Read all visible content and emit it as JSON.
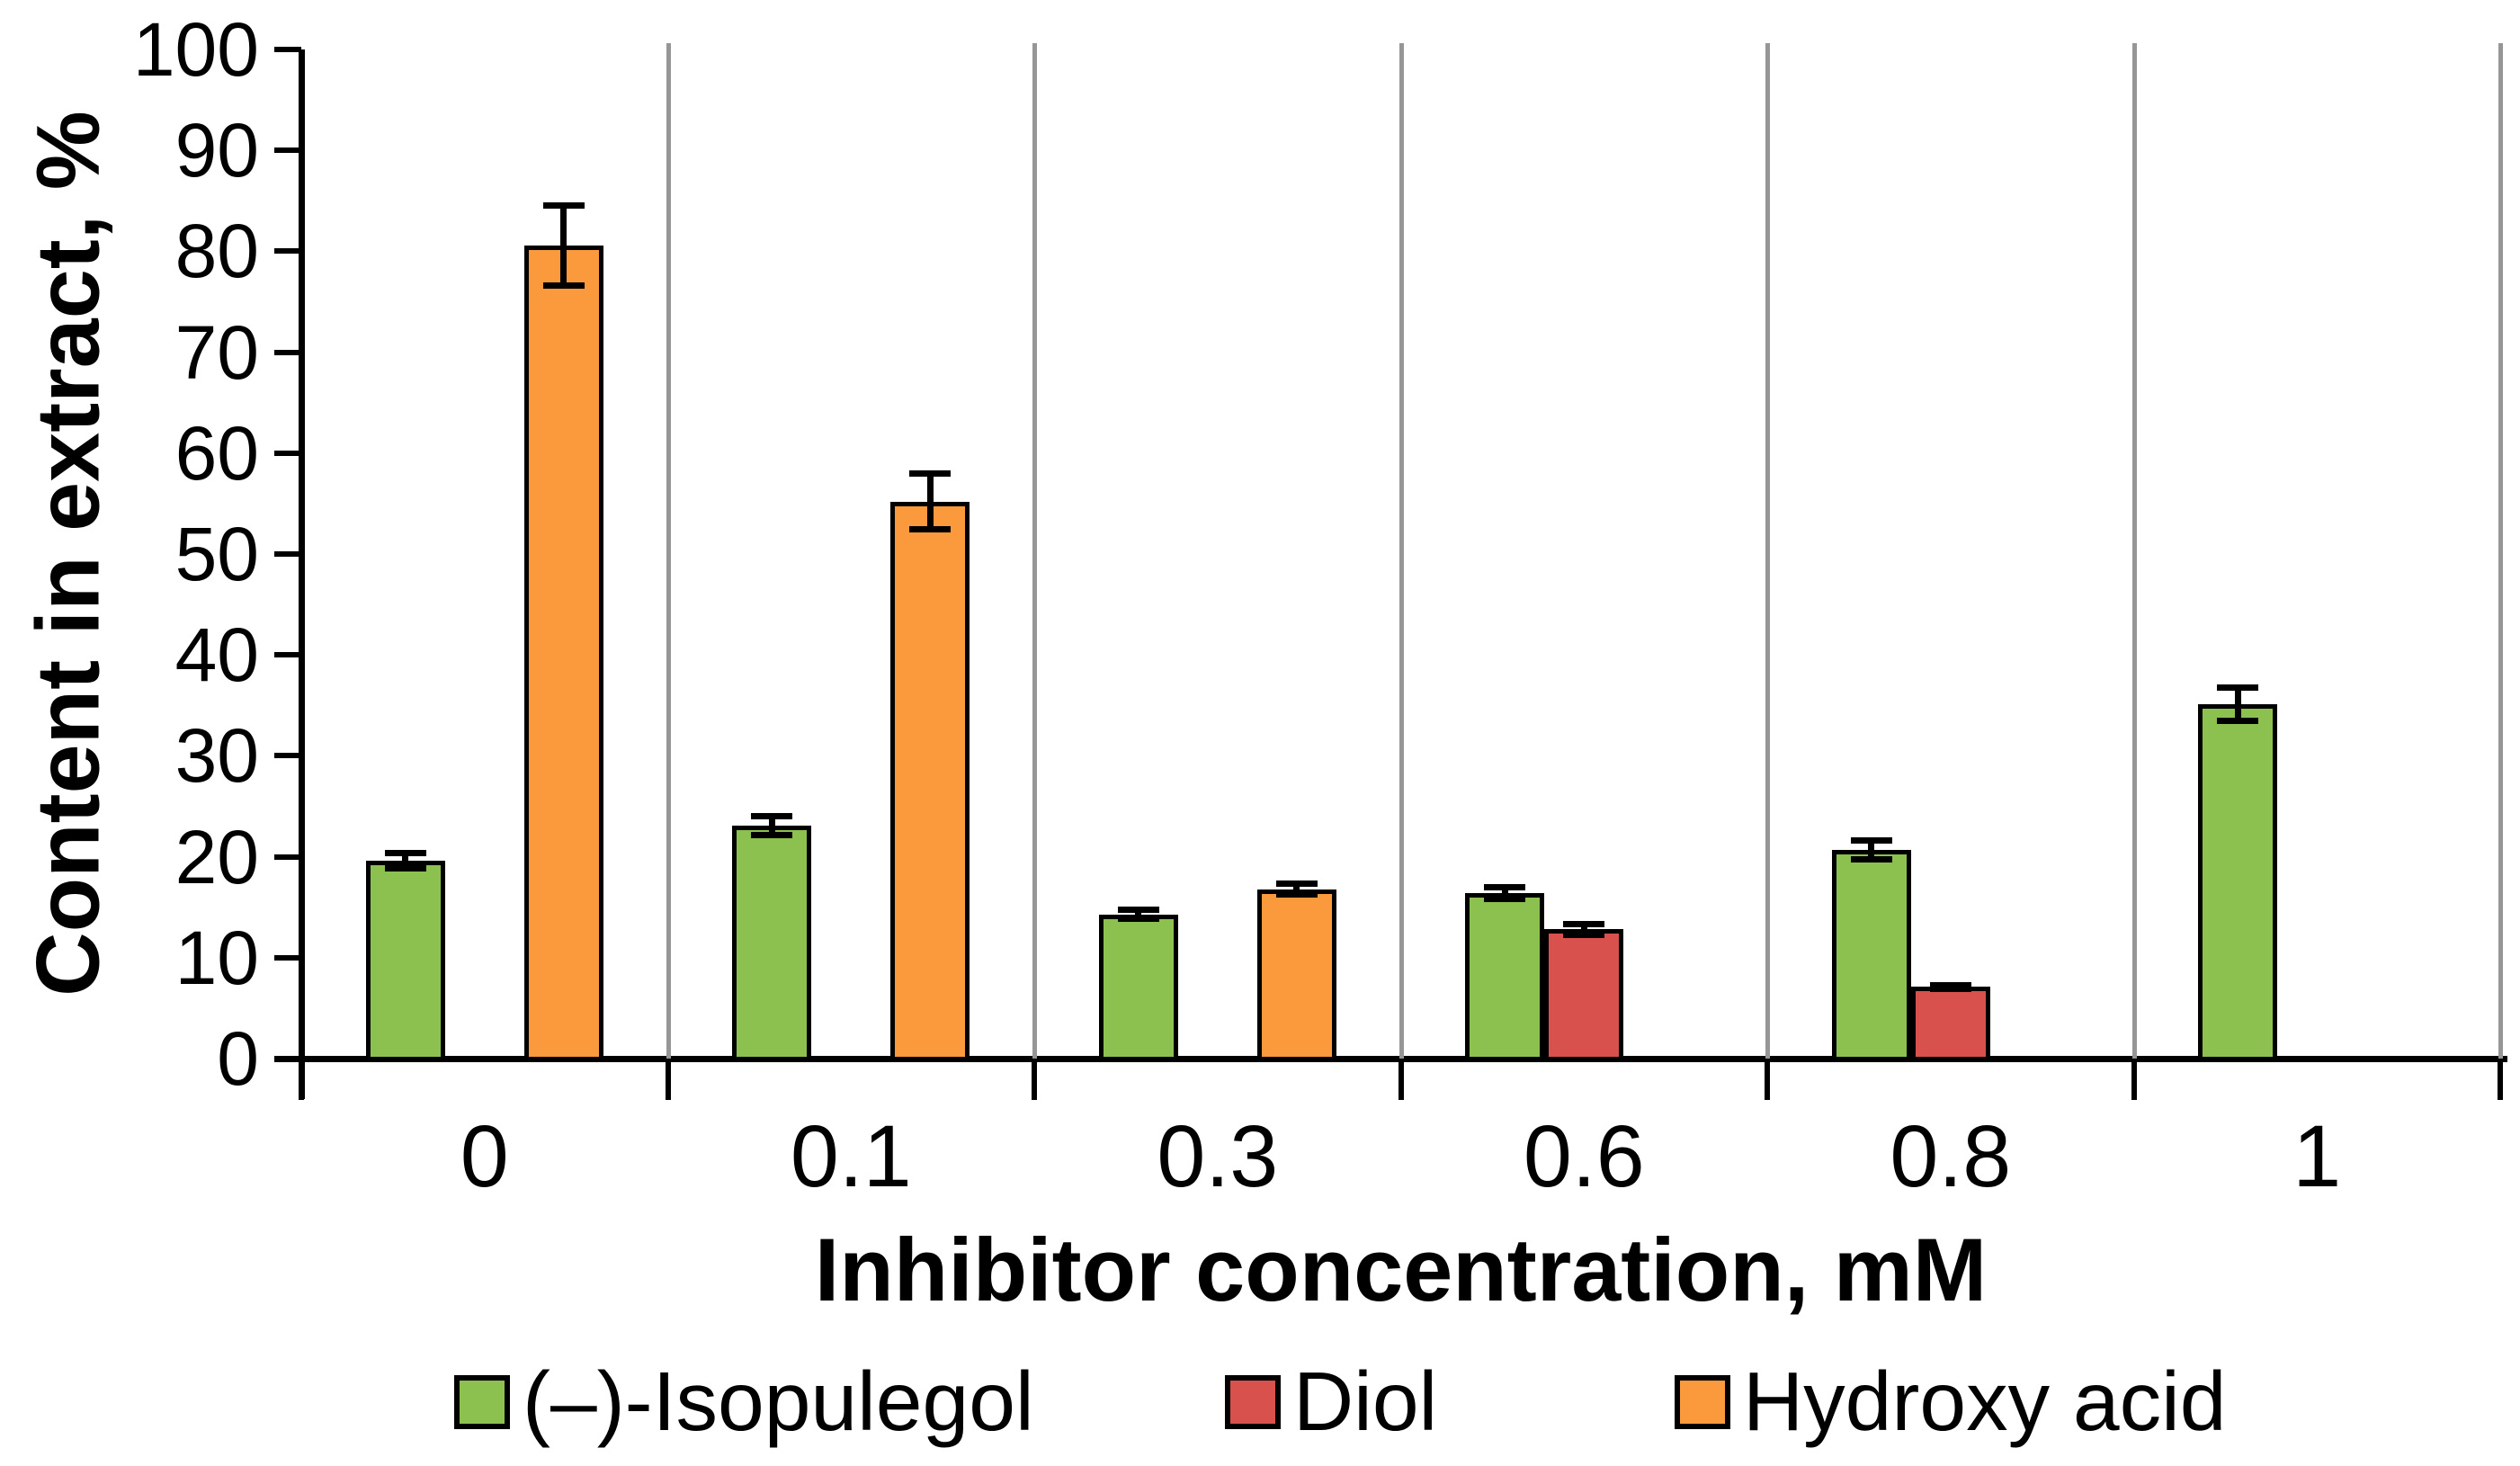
{
  "chart_data": {
    "type": "bar",
    "title": "",
    "xlabel": "Inhibitor concentration, mM",
    "ylabel": "Content in extract, %",
    "ylim": [
      0,
      100
    ],
    "ytick_step": 10,
    "yticks": [
      "0",
      "10",
      "20",
      "30",
      "40",
      "50",
      "60",
      "70",
      "80",
      "90",
      "100"
    ],
    "categories": [
      "0",
      "0.1",
      "0.3",
      "0.6",
      "0.8",
      "1"
    ],
    "series": [
      {
        "name": "(–)-Isopulegol",
        "color": "#8CC04F",
        "values": [
          19.6,
          23.1,
          14.3,
          16.4,
          20.7,
          35.1
        ],
        "errors": [
          0.8,
          1.0,
          0.5,
          0.6,
          1.0,
          1.7
        ]
      },
      {
        "name": "Diol",
        "color": "#D9514D",
        "values": [
          null,
          null,
          null,
          12.8,
          7.1,
          null
        ],
        "errors": [
          null,
          null,
          null,
          0.6,
          0.2,
          null
        ]
      },
      {
        "name": "Hydroxy acid",
        "color": "#FA9A3C",
        "values": [
          80.6,
          55.2,
          16.8,
          null,
          null,
          null
        ],
        "errors": [
          4.0,
          2.8,
          0.6,
          null,
          null,
          null
        ]
      }
    ],
    "grid": {
      "vertical_category_separators": true,
      "color": "#969696"
    },
    "axis_color": "#000000",
    "legend_position": "bottom",
    "error_bars": true
  }
}
